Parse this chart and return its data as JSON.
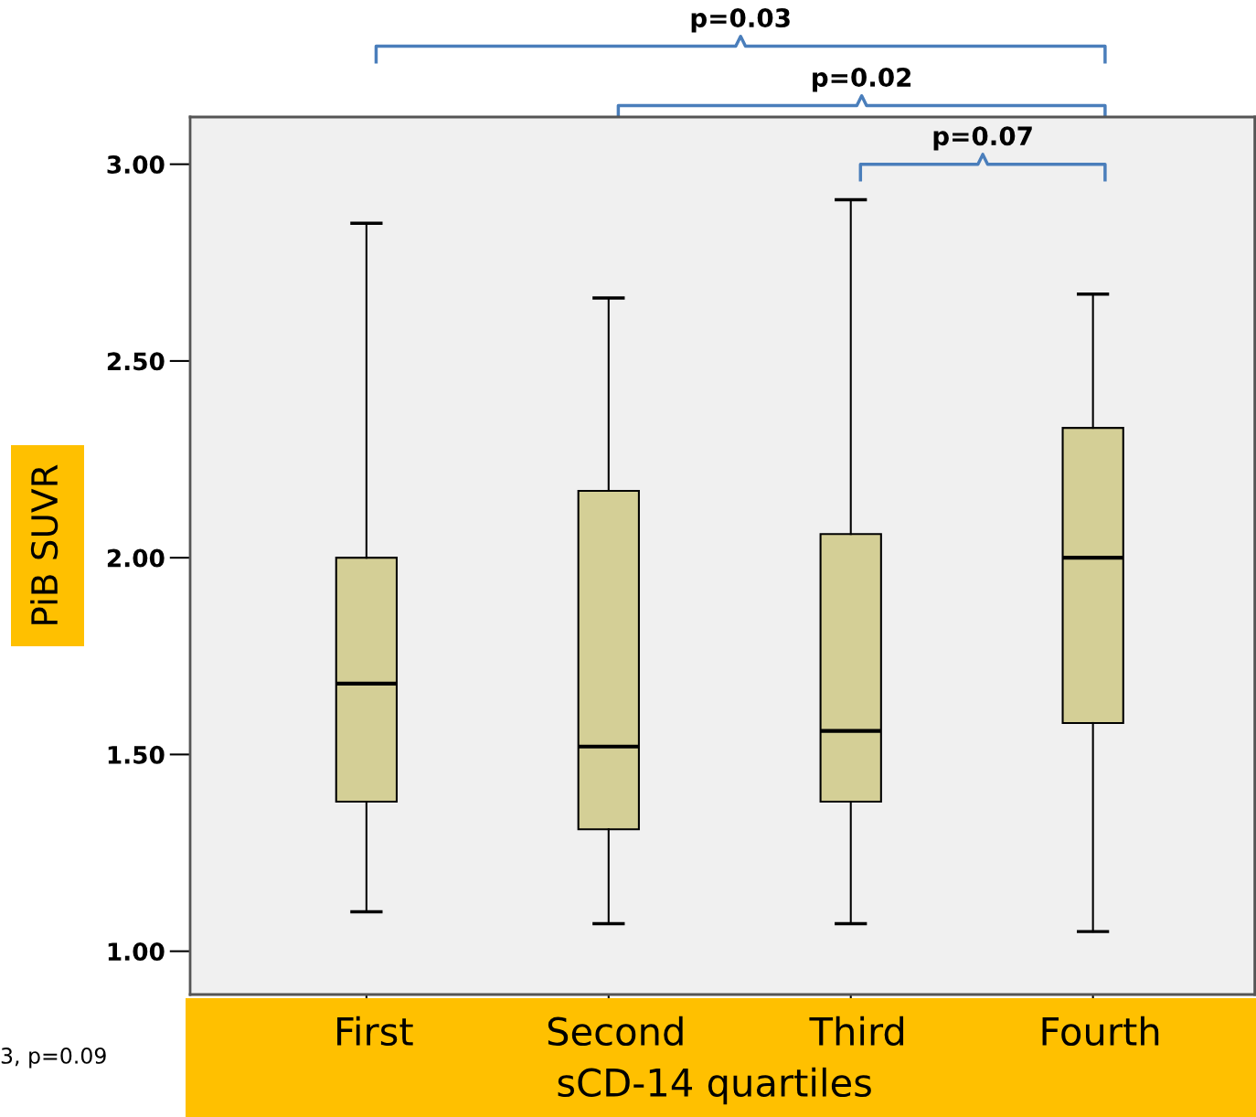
{
  "chart_data": {
    "type": "box",
    "ylabel": "PiB SUVR",
    "xlabel": "sCD-14 quartiles",
    "categories": [
      "First",
      "Second",
      "Third",
      "Fourth"
    ],
    "color": "#d4cf96",
    "boxes": [
      {
        "low": 1.1,
        "q1": 1.38,
        "median": 1.68,
        "q3": 2.0,
        "high": 2.85
      },
      {
        "low": 1.07,
        "q1": 1.31,
        "median": 1.52,
        "q3": 2.17,
        "high": 2.66
      },
      {
        "low": 1.07,
        "q1": 1.38,
        "median": 1.56,
        "q3": 2.06,
        "high": 2.91
      },
      {
        "low": 1.05,
        "q1": 1.58,
        "median": 2.0,
        "q3": 2.33,
        "high": 2.67
      }
    ],
    "ylim": [
      0.89,
      3.12
    ],
    "yticks": [
      {
        "value": 1,
        "label": "1.00"
      },
      {
        "value": 1.5,
        "label": "1.50"
      },
      {
        "value": 2,
        "label": "2.00"
      },
      {
        "value": 2.5,
        "label": "2.50"
      },
      {
        "value": 3,
        "label": "3.00"
      }
    ],
    "grid": false,
    "annotations": [
      "p=0.03",
      "p=0.02",
      "p=0.07",
      "3, p=0.09"
    ]
  }
}
